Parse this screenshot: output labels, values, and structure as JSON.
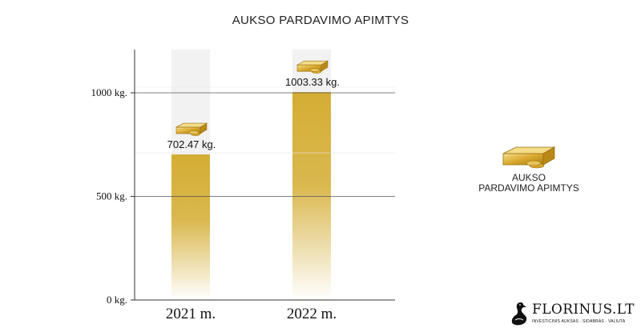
{
  "chart_data": {
    "type": "bar",
    "title": "AUKSO PARDAVIMO APIMTYS",
    "categories": [
      "2021 m.",
      "2022 m."
    ],
    "values": [
      702.47,
      1003.33
    ],
    "data_labels": [
      "702.47 kg.",
      "1003.33 kg."
    ],
    "ylim": [
      0,
      1200
    ],
    "y_ticks": [
      {
        "value": 0,
        "label": "0 kg."
      },
      {
        "value": 500,
        "label": "500 kg."
      },
      {
        "value": 1000,
        "label": "1000 kg."
      }
    ],
    "grid": true,
    "legend": {
      "entry": "AUKSO\nPARDAVIMO APIMTYS",
      "position": "right",
      "line1": "AUKSO",
      "line2": "PARDAVIMO APIMTYS"
    },
    "colors": {
      "bar": "#d4ad33",
      "bar_fade": "#ffffff",
      "background_column": "#f2f2f2",
      "grid": "#555555"
    }
  },
  "logo": {
    "name": "FLORINUS.LT",
    "tagline": "INVESTICINIS AUKSAS · SIDABRAS · VALIUTA",
    "icon": "goose-logo-icon"
  }
}
